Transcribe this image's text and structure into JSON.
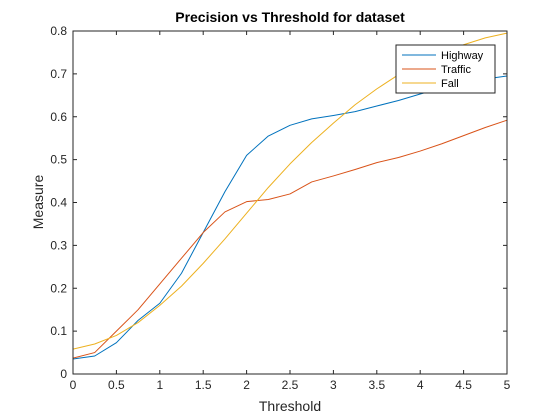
{
  "chart_data": {
    "type": "line",
    "title": "Precision vs Threshold for dataset",
    "xlabel": "Threshold",
    "ylabel": "Measure",
    "xlim": [
      0,
      5
    ],
    "ylim": [
      0,
      0.8
    ],
    "xticks": [
      0,
      0.5,
      1,
      1.5,
      2,
      2.5,
      3,
      3.5,
      4,
      4.5,
      5
    ],
    "xtick_labels": [
      "0",
      "0.5",
      "1",
      "1.5",
      "2",
      "2.5",
      "3",
      "3.5",
      "4",
      "4.5",
      "5"
    ],
    "yticks": [
      0,
      0.1,
      0.2,
      0.3,
      0.4,
      0.5,
      0.6,
      0.7,
      0.8
    ],
    "ytick_labels": [
      "0",
      "0.1",
      "0.2",
      "0.3",
      "0.4",
      "0.5",
      "0.6",
      "0.7",
      "0.8"
    ],
    "grid": false,
    "legend_position": "top-right",
    "x": [
      0,
      0.25,
      0.5,
      0.75,
      1,
      1.25,
      1.5,
      1.75,
      2,
      2.25,
      2.5,
      2.75,
      3,
      3.25,
      3.5,
      3.75,
      4,
      4.25,
      4.5,
      4.75,
      5
    ],
    "series": [
      {
        "name": "Highway",
        "color": "#0072BD",
        "values": [
          0.035,
          0.042,
          0.073,
          0.125,
          0.165,
          0.235,
          0.33,
          0.425,
          0.51,
          0.555,
          0.58,
          0.595,
          0.603,
          0.612,
          0.625,
          0.638,
          0.653,
          0.667,
          0.68,
          0.688,
          0.695
        ]
      },
      {
        "name": "Traffic",
        "color": "#D95319",
        "values": [
          0.037,
          0.05,
          0.1,
          0.15,
          0.21,
          0.27,
          0.33,
          0.378,
          0.402,
          0.407,
          0.42,
          0.448,
          0.462,
          0.477,
          0.493,
          0.505,
          0.52,
          0.537,
          0.556,
          0.575,
          0.592
        ]
      },
      {
        "name": "Fall",
        "color": "#EDB120",
        "values": [
          0.058,
          0.07,
          0.09,
          0.12,
          0.16,
          0.205,
          0.258,
          0.315,
          0.375,
          0.435,
          0.49,
          0.54,
          0.585,
          0.628,
          0.665,
          0.698,
          0.725,
          0.748,
          0.768,
          0.784,
          0.795
        ]
      }
    ]
  }
}
